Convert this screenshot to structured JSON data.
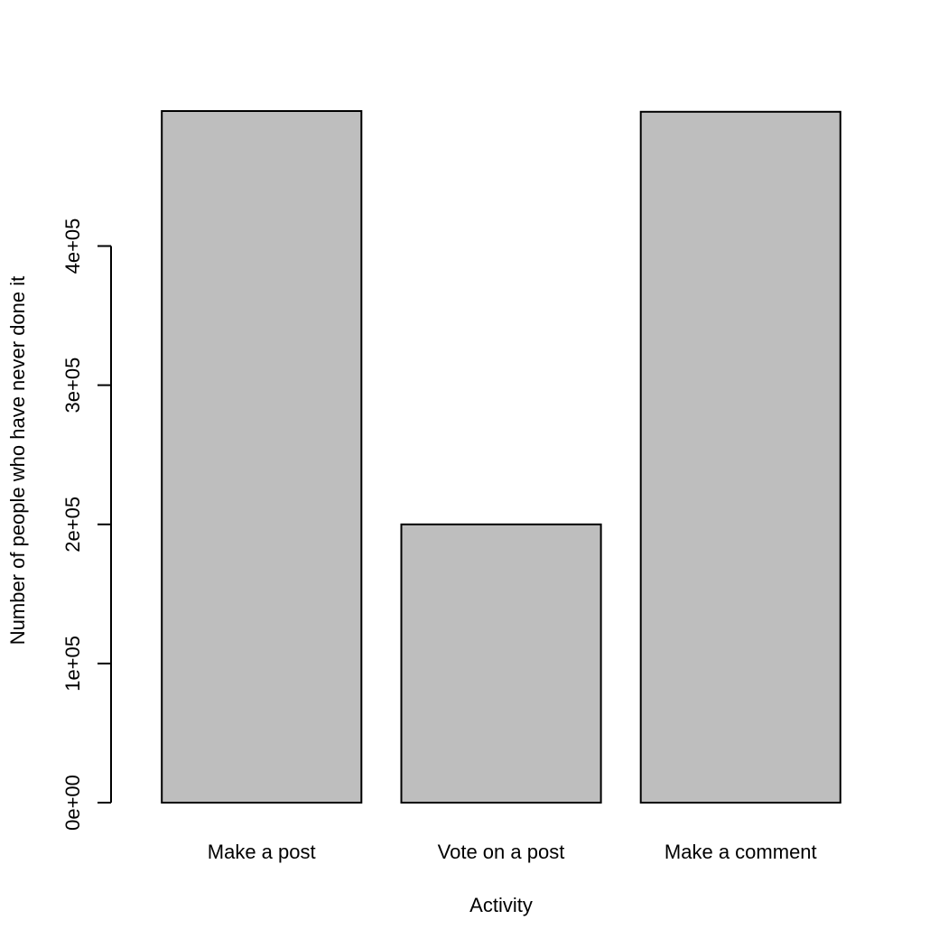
{
  "chart_data": {
    "type": "bar",
    "categories": [
      "Make a post",
      "Vote on a post",
      "Make a comment"
    ],
    "values": [
      497000,
      200000,
      496500
    ],
    "xlabel": "Activity",
    "ylabel": "Number of people who have never done it",
    "yticks": [
      0,
      100000,
      200000,
      300000,
      400000
    ],
    "ytick_labels": [
      "0e+00",
      "1e+05",
      "2e+05",
      "3e+05",
      "4e+05"
    ],
    "ylim": [
      0,
      497000
    ],
    "bar_color": "#bebebe",
    "bar_border_color": "#000000",
    "grid": false,
    "legend": "none"
  }
}
